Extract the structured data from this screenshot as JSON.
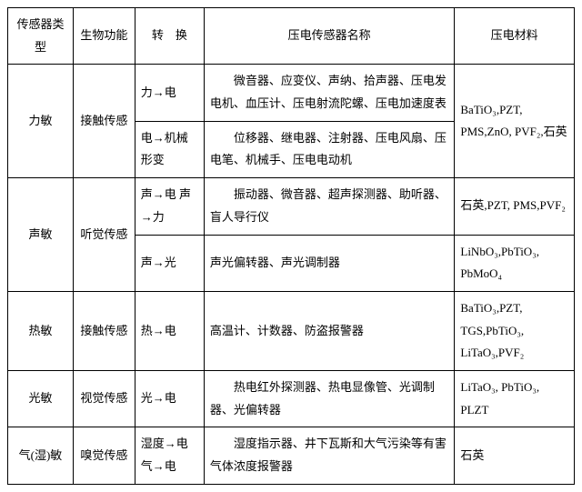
{
  "headers": {
    "col1": "传感器类型",
    "col2": "生物功能",
    "col3": "转　换",
    "col4": "压电传感器名称",
    "col5": "压电材料"
  },
  "rows": {
    "r1": {
      "type": "力敏",
      "bio": "接触传感",
      "conv": "力→电",
      "name": "　　微音器、应变仪、声纳、拾声器、压电发电机、血压计、压电射流陀螺、压电加速度表",
      "mat": "BaTiO₃,PZT, PMS,ZnO, PVF₂,石英"
    },
    "r1b": {
      "conv": "电→机械形变",
      "name": "　　位移器、继电器、注射器、压电风扇、压电笔、机械手、压电电动机"
    },
    "r2": {
      "type": "声敏",
      "bio": "听觉传感",
      "conv": "声→电 声→力",
      "name": "　　振动器、微音器、超声探测器、助听器、盲人导行仪",
      "mat": "石英,PZT, PMS,PVF₂"
    },
    "r2b": {
      "conv": "声→光",
      "name": "声光偏转器、声光调制器",
      "mat": "LiNbO₃,PbTiO₃, PbMoO₄"
    },
    "r3": {
      "type": "热敏",
      "bio": "接触传感",
      "conv": "热→电",
      "name": "高温计、计数器、防盗报警器",
      "mat": "BaTiO₃,PZT, TGS,PbTiO₃, LiTaO₃,PVF₂"
    },
    "r4": {
      "type": "光敏",
      "bio": "视觉传感",
      "conv": "光→电",
      "name": "　　热电红外探测器、热电显像管、光调制器、光偏转器",
      "mat": "LiTaO₃, PbTiO₃, PLZT"
    },
    "r5": {
      "type": "气(湿)敏",
      "bio": "嗅觉传感",
      "conv": "湿度→电 气→电",
      "name": "　　湿度指示器、井下瓦斯和大气污染等有害气体浓度报警器",
      "mat": "石英"
    }
  }
}
